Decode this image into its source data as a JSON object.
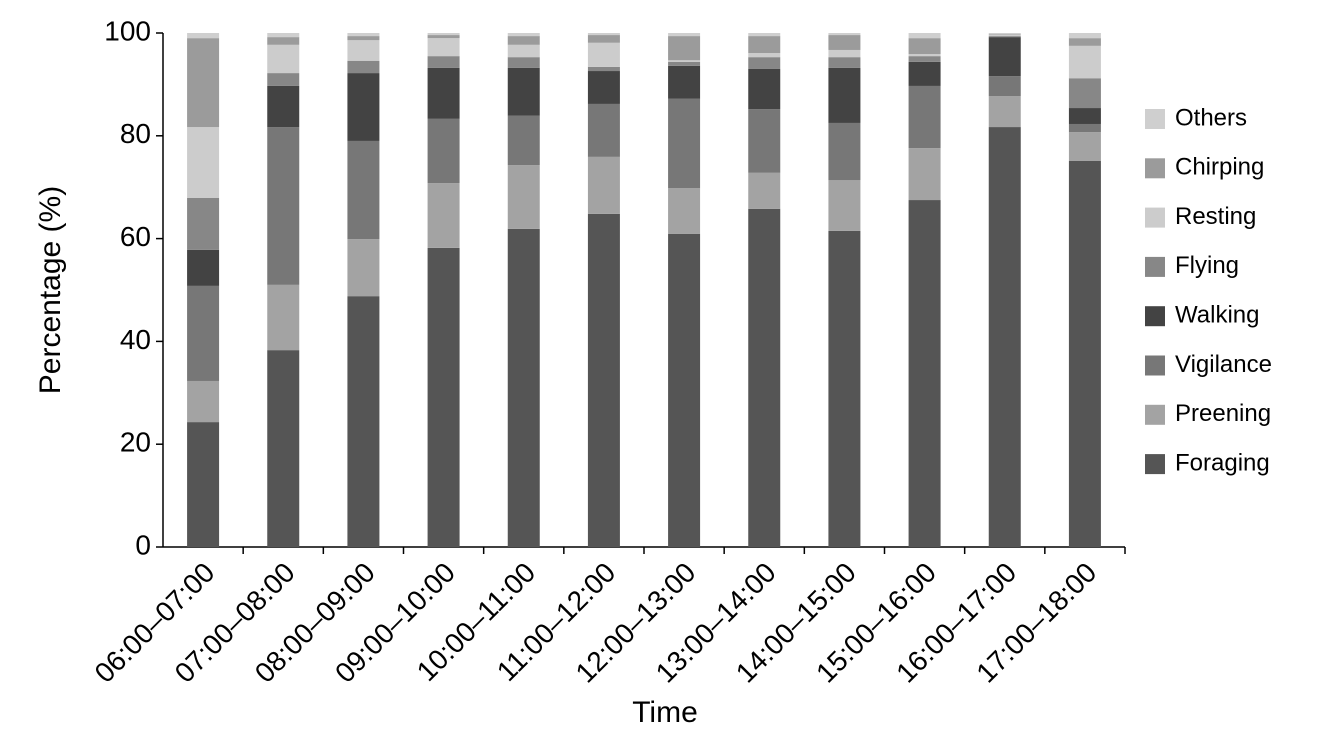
{
  "chart_data": {
    "type": "stacked_bar",
    "x_label": "Time",
    "y_label": "Percentage (%)",
    "categories": [
      "06:00–07:00",
      "07:00–08:00",
      "08:00–09:00",
      "09:00–10:00",
      "10:00–11:00",
      "11:00–12:00",
      "12:00–13:00",
      "13:00–14:00",
      "14:00–15:00",
      "15:00–16:00",
      "16:00–17:00",
      "17:00–18:00"
    ],
    "series": [
      {
        "name": "Foraging",
        "color": "#555555",
        "values": [
          24.3,
          38.3,
          48.8,
          58.2,
          61.9,
          64.8,
          60.9,
          65.8,
          61.5,
          67.5,
          81.7,
          75.1
        ]
      },
      {
        "name": "Preening",
        "color": "#a3a3a3",
        "values": [
          8.0,
          12.7,
          11.1,
          12.6,
          12.4,
          11.1,
          8.9,
          7.0,
          9.9,
          10.1,
          6.0,
          5.6
        ]
      },
      {
        "name": "Vigilance",
        "color": "#777777",
        "values": [
          18.5,
          30.7,
          19.1,
          12.5,
          9.6,
          10.3,
          17.4,
          12.4,
          11.1,
          12.1,
          3.9,
          1.6
        ]
      },
      {
        "name": "Walking",
        "color": "#434343",
        "values": [
          7.0,
          8.0,
          13.2,
          9.9,
          9.3,
          6.4,
          6.4,
          7.8,
          10.7,
          4.7,
          7.6,
          3.1
        ]
      },
      {
        "name": "Flying",
        "color": "#878787",
        "values": [
          10.1,
          2.5,
          2.4,
          2.3,
          2.1,
          0.8,
          0.8,
          2.3,
          2.1,
          1.1,
          0.2,
          5.8
        ]
      },
      {
        "name": "Resting",
        "color": "#cccccc",
        "values": [
          13.8,
          5.5,
          4.0,
          3.5,
          2.4,
          4.7,
          0.3,
          0.8,
          1.4,
          0.4,
          0.2,
          6.3
        ]
      },
      {
        "name": "Chirping",
        "color": "#9b9b9b",
        "values": [
          17.3,
          1.5,
          0.8,
          0.6,
          1.7,
          1.5,
          4.7,
          3.3,
          2.9,
          3.1,
          0.1,
          1.5
        ]
      },
      {
        "name": "Others",
        "color": "#cfcfcf",
        "values": [
          1.0,
          0.8,
          0.6,
          0.4,
          0.6,
          0.4,
          0.6,
          0.6,
          0.4,
          1.0,
          0.3,
          1.0
        ]
      }
    ],
    "ylim": [
      0,
      100
    ],
    "yticks": [
      0,
      20,
      40,
      60,
      80,
      100
    ],
    "legend": "right",
    "grid": false
  }
}
